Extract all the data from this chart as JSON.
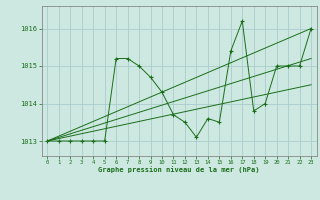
{
  "title": "Graphe pression niveau de la mer (hPa)",
  "background_color": "#cce8e0",
  "grid_color": "#aacccc",
  "line_color": "#1a6e1a",
  "xlim": [
    -0.5,
    23.5
  ],
  "ylim": [
    1012.6,
    1016.6
  ],
  "yticks": [
    1013,
    1014,
    1015,
    1016
  ],
  "xticks": [
    0,
    1,
    2,
    3,
    4,
    5,
    6,
    7,
    8,
    9,
    10,
    11,
    12,
    13,
    14,
    15,
    16,
    17,
    18,
    19,
    20,
    21,
    22,
    23
  ],
  "main_series": {
    "x": [
      0,
      1,
      2,
      3,
      4,
      5,
      6,
      7,
      8,
      9,
      10,
      11,
      12,
      13,
      14,
      15,
      16,
      17,
      18,
      19,
      20,
      21,
      22,
      23
    ],
    "y": [
      1013.0,
      1013.0,
      1013.0,
      1013.0,
      1013.0,
      1013.0,
      1015.2,
      1015.2,
      1015.0,
      1014.7,
      1014.3,
      1013.7,
      1013.5,
      1013.1,
      1013.6,
      1013.5,
      1015.4,
      1016.2,
      1013.8,
      1014.0,
      1015.0,
      1015.0,
      1015.0,
      1016.0
    ]
  },
  "trend_lines": [
    {
      "x": [
        0,
        23
      ],
      "y": [
        1013.0,
        1016.0
      ]
    },
    {
      "x": [
        0,
        23
      ],
      "y": [
        1013.0,
        1015.2
      ]
    },
    {
      "x": [
        0,
        23
      ],
      "y": [
        1013.0,
        1014.5
      ]
    }
  ]
}
